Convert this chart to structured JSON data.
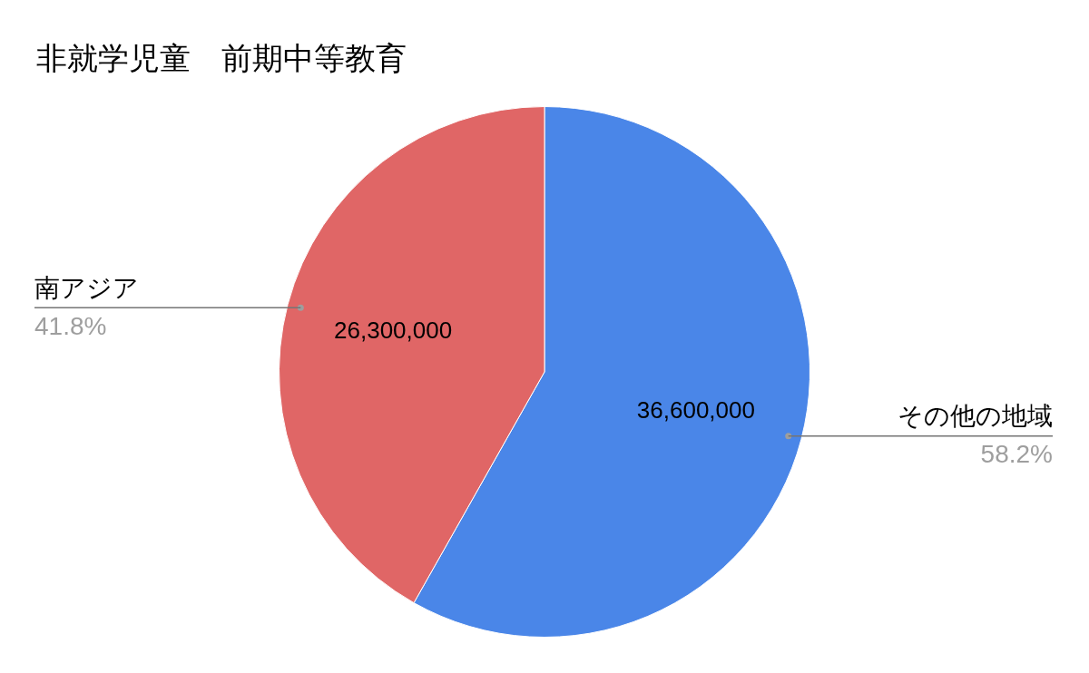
{
  "chart_data": {
    "type": "pie",
    "title": "非就学児童　前期中等教育",
    "categories": [
      "その他の地域",
      "南アジア"
    ],
    "values": [
      36600000,
      26300000
    ],
    "colors": [
      "#4a86e8",
      "#e06666"
    ],
    "value_labels": [
      "36,600,000",
      "26,300,000"
    ],
    "annotations": [
      "58.2%",
      "41.8%"
    ],
    "legend": false
  }
}
